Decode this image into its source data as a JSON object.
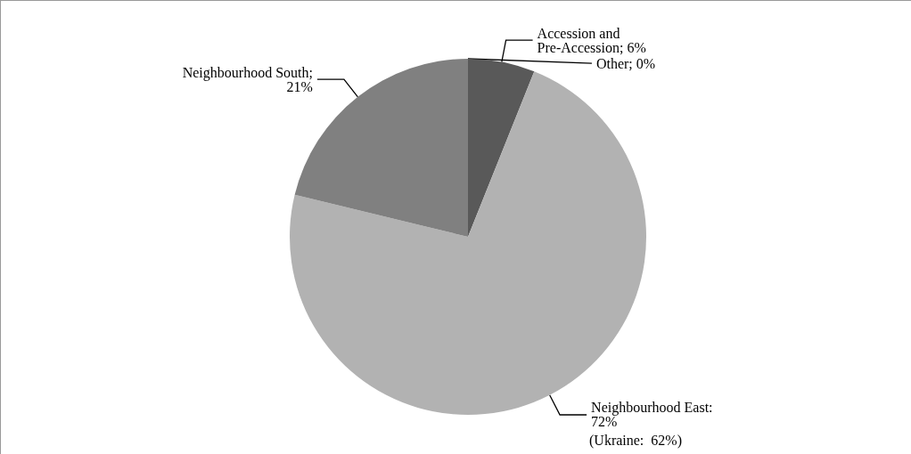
{
  "chart_data": {
    "type": "pie",
    "categories": [
      "Accession and Pre-Accession",
      "Neighbourhood East",
      "Neighbourhood South",
      "Other"
    ],
    "values": [
      6,
      72,
      21,
      0
    ],
    "colors": [
      "#595959",
      "#b2b2b2",
      "#808080",
      "#000000"
    ],
    "value_labels": [
      "; 6%",
      ": 72%",
      "; 21%",
      "; 0%"
    ],
    "annotations": [
      "(Ukraine:  62%)"
    ]
  }
}
